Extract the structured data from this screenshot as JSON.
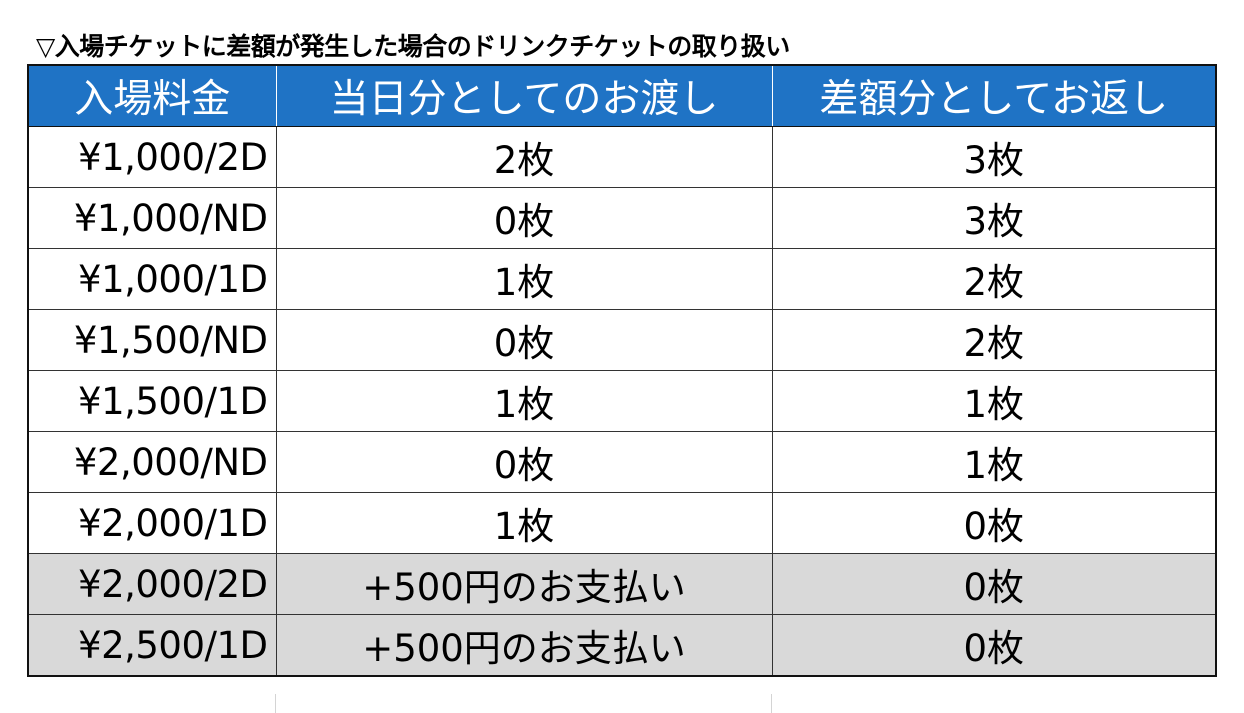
{
  "caption": "▽入場チケットに差額が発生した場合のドリンクチケットの取り扱い",
  "headers": {
    "fee": "入場料金",
    "same_day": "当日分としてのお渡し",
    "refund": "差額分としてお返し"
  },
  "rows": [
    {
      "fee": "¥1,000/2D",
      "same_day": "2枚",
      "refund": "3枚",
      "shaded": false
    },
    {
      "fee": "¥1,000/ND",
      "same_day": "0枚",
      "refund": "3枚",
      "shaded": false
    },
    {
      "fee": "¥1,000/1D",
      "same_day": "1枚",
      "refund": "2枚",
      "shaded": false
    },
    {
      "fee": "¥1,500/ND",
      "same_day": "0枚",
      "refund": "2枚",
      "shaded": false
    },
    {
      "fee": "¥1,500/1D",
      "same_day": "1枚",
      "refund": "1枚",
      "shaded": false
    },
    {
      "fee": "¥2,000/ND",
      "same_day": "0枚",
      "refund": "1枚",
      "shaded": false
    },
    {
      "fee": "¥2,000/1D",
      "same_day": "1枚",
      "refund": "0枚",
      "shaded": false
    },
    {
      "fee": "¥2,000/2D",
      "same_day": "+500円のお支払い",
      "refund": "0枚",
      "shaded": true
    },
    {
      "fee": "¥2,500/1D",
      "same_day": "+500円のお支払い",
      "refund": "0枚",
      "shaded": true
    }
  ],
  "colors": {
    "header_bg": "#1f73c5",
    "header_text": "#ffffff",
    "shaded_row_bg": "#d9d9d9",
    "grid_line": "#333333"
  }
}
